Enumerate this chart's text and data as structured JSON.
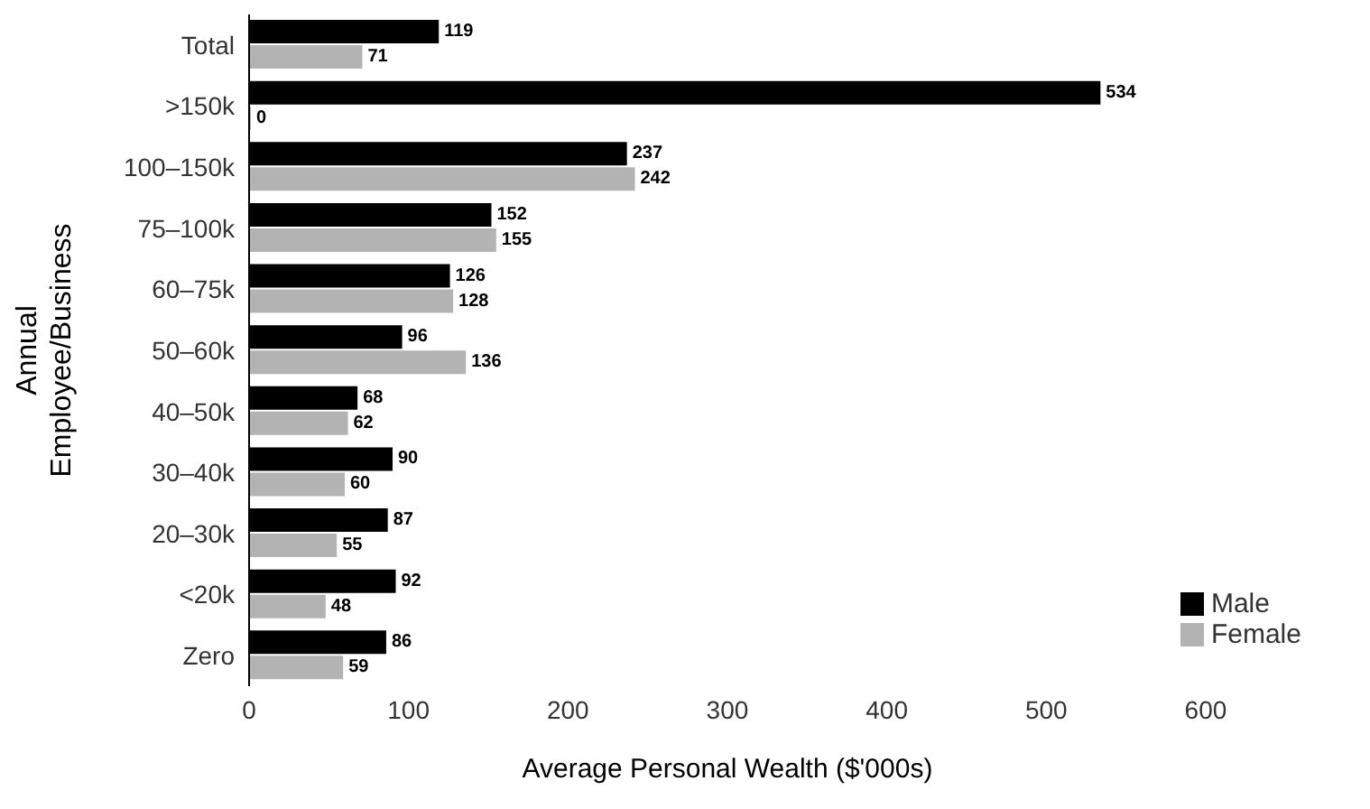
{
  "chart_data": {
    "type": "bar",
    "orientation": "horizontal",
    "xlabel": "Average Personal Wealth ($'000s)",
    "ylabel": "Annual Employee/Business",
    "categories": [
      "Total",
      ">150k",
      "100–150k",
      "75–100k",
      "60–75k",
      "50–60k",
      "40–50k",
      "30–40k",
      "20–30k",
      "<20k",
      "Zero"
    ],
    "series": [
      {
        "name": "Male",
        "color": "#000000",
        "values": [
          119,
          534,
          237,
          152,
          126,
          96,
          68,
          90,
          87,
          92,
          86
        ]
      },
      {
        "name": "Female",
        "color": "#b3b3b3",
        "values": [
          71,
          0,
          242,
          155,
          128,
          136,
          62,
          60,
          55,
          48,
          59
        ]
      }
    ],
    "xlim": [
      0,
      600
    ],
    "xticks": [
      0,
      100,
      200,
      300,
      400,
      500,
      600
    ],
    "data_labels": true,
    "grid": false,
    "legend": "bottom right"
  }
}
